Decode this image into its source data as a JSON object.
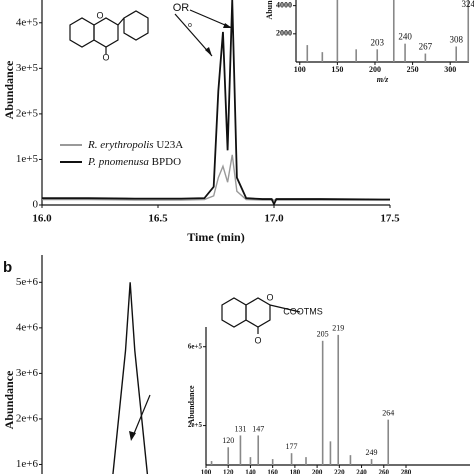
{
  "chart_data": [
    {
      "type": "line",
      "x_label": "Time (min)",
      "y_label": "Abundance",
      "x": [
        16.0,
        16.2,
        16.4,
        16.6,
        16.7,
        16.74,
        16.76,
        16.78,
        16.8,
        16.82,
        16.84,
        16.88,
        16.95,
        16.99,
        17.0,
        17.01,
        17.2,
        17.5
      ],
      "series": [
        {
          "name": "R. erythropolis U23A",
          "strain": "U23A",
          "color": "#999999",
          "values": [
            12000,
            12000,
            11000,
            11000,
            12000,
            20000,
            60000,
            85000,
            50000,
            110000,
            30000,
            12000,
            11000,
            11000,
            11000,
            11000,
            11000,
            11000
          ]
        },
        {
          "name": "P. pnomenusa BPDO",
          "strain": "BPDO",
          "color": "#111111",
          "values": [
            15000,
            15000,
            14000,
            14000,
            15000,
            40000,
            250000,
            380000,
            120000,
            450000,
            60000,
            15000,
            13000,
            13000,
            2000,
            13000,
            13000,
            12000
          ]
        }
      ],
      "xlim": [
        16.0,
        17.5
      ],
      "xticks": [
        {
          "value": 16.0,
          "label": "16.0"
        },
        {
          "value": 16.5,
          "label": "16.5"
        },
        {
          "value": 17.0,
          "label": "17.0"
        },
        {
          "value": 17.5,
          "label": "17.5"
        }
      ],
      "ylim": [
        0,
        450000
      ],
      "yticks": [
        {
          "value": 0,
          "label": "0"
        },
        {
          "value": 100000,
          "label": "1e+5"
        },
        {
          "value": 200000,
          "label": "2e+5"
        },
        {
          "value": 300000,
          "label": "3e+5"
        },
        {
          "value": 400000,
          "label": "4e+5"
        }
      ],
      "annotations": [
        "O",
        "OR",
        "O",
        "o"
      ]
    },
    {
      "type": "bar",
      "x_label": "m/z",
      "y_label": "Abun",
      "color": "#888888",
      "x": [
        110,
        130,
        150,
        175,
        203,
        225,
        240,
        267,
        308,
        324
      ],
      "values": [
        1200,
        700,
        4400,
        900,
        900,
        4400,
        1300,
        600,
        1100,
        4400
      ],
      "peak_labels": [
        null,
        null,
        null,
        null,
        203,
        null,
        240,
        267,
        308,
        324
      ],
      "xlim": [
        95,
        325
      ],
      "xticks": [
        100,
        150,
        200,
        250,
        300
      ],
      "ylim": [
        0,
        4400
      ],
      "yticks": [
        2000,
        4000
      ]
    },
    {
      "type": "line",
      "panel": "b",
      "y_label": "Abundance",
      "x": [
        16.3,
        16.36,
        16.38,
        16.4,
        16.46
      ],
      "series": [
        {
          "color": "#111111",
          "values": [
            500000,
            3500000,
            5000000,
            3500000,
            500000
          ]
        }
      ],
      "xlim": [
        16.0,
        17.5
      ],
      "ylim": [
        0,
        5600000
      ],
      "yticks": [
        {
          "value": 1000000,
          "label": "1e+6"
        },
        {
          "value": 2000000,
          "label": "2e+6"
        },
        {
          "value": 3000000,
          "label": "3e+6"
        },
        {
          "value": 4000000,
          "label": "4e+6"
        },
        {
          "value": 5000000,
          "label": "5e+6"
        }
      ]
    },
    {
      "type": "bar",
      "y_label": "Abundance",
      "color": "#888888",
      "x": [
        105,
        120,
        131,
        140,
        147,
        160,
        177,
        190,
        205,
        212,
        219,
        230,
        249,
        264
      ],
      "values": [
        20000,
        90000,
        150000,
        40000,
        150000,
        30000,
        60000,
        40000,
        630000,
        120000,
        660000,
        50000,
        30000,
        230000
      ],
      "peak_labels": [
        null,
        120,
        131,
        null,
        147,
        null,
        177,
        null,
        205,
        null,
        219,
        null,
        249,
        264
      ],
      "xlim": [
        100,
        280
      ],
      "xticks": [
        100,
        120,
        140,
        160,
        180,
        200,
        220,
        240,
        260,
        280
      ],
      "ylim": [
        0,
        700000
      ],
      "yticks": [
        {
          "value": 200000,
          "label": "2e+5"
        },
        {
          "value": 600000,
          "label": "6e+5"
        }
      ],
      "annotations": [
        "O",
        "COOTMS",
        "O"
      ]
    }
  ]
}
